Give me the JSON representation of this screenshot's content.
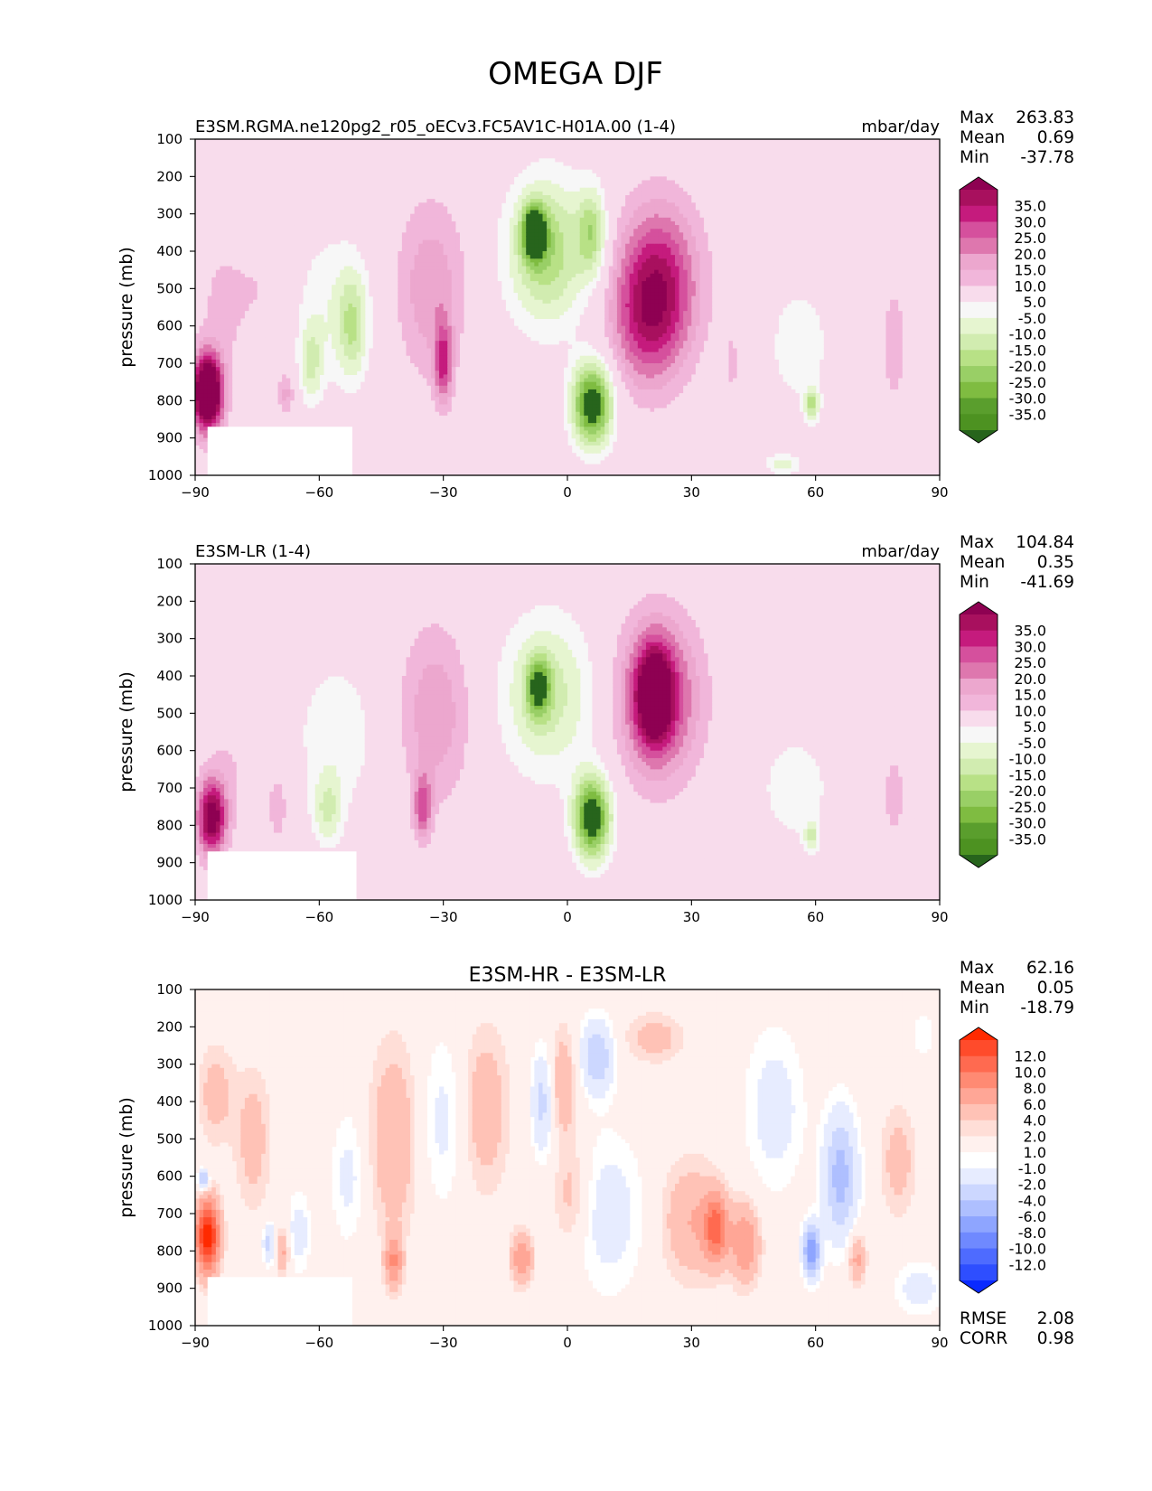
{
  "figure_title": "OMEGA DJF",
  "chart_data": [
    {
      "type": "heatmap",
      "panel": "test",
      "title_left": "E3SM.RGMA.ne120pg2_r05_oECv3.FC5AV1C-H01A.00 (1-4)",
      "title_right": "mbar/day",
      "title_center": "",
      "xlabel": "",
      "ylabel": "pressure (mb)",
      "xlim": [
        -90,
        90
      ],
      "ylim": [
        1000,
        100
      ],
      "x_ticks": [
        "−90",
        "−60",
        "−30",
        "0",
        "30",
        "60",
        "90"
      ],
      "y_ticks": [
        "100",
        "200",
        "300",
        "400",
        "500",
        "600",
        "700",
        "800",
        "900",
        "1000"
      ],
      "stats": [
        {
          "label": "Max",
          "value": "263.83"
        },
        {
          "label": "Mean",
          "value": "0.69"
        },
        {
          "label": "Min",
          "value": "-37.78"
        }
      ],
      "extra_stats": [],
      "colorbar_levels": [
        "35.0",
        "30.0",
        "25.0",
        "20.0",
        "15.0",
        "10.0",
        "5.0",
        "-5.0",
        "-10.0",
        "-15.0",
        "-20.0",
        "-25.0",
        "-30.0",
        "-35.0"
      ],
      "colorbar_colors": [
        "#8e0152",
        "#a8105e",
        "#c51b7d",
        "#d5509d",
        "#de77ae",
        "#eca7ce",
        "#f1b6da",
        "#f8dcec",
        "#f7f7f7",
        "#e6f5d0",
        "#d1ecb0",
        "#b8e186",
        "#99cf66",
        "#7fbc41",
        "#5a9e2d",
        "#4d9221",
        "#27641c"
      ],
      "features": [
        {
          "lat": -87,
          "p": 780,
          "w": 2.5,
          "h": 140,
          "v": 60
        },
        {
          "lat": -84,
          "p": 560,
          "w": 4,
          "h": 300,
          "v": 6
        },
        {
          "lat": -74,
          "p": 500,
          "w": 5,
          "h": 250,
          "v": 5
        },
        {
          "lat": -68,
          "p": 780,
          "w": 1.5,
          "h": 80,
          "v": 12
        },
        {
          "lat": -57,
          "p": 550,
          "w": 7,
          "h": 300,
          "v": -9
        },
        {
          "lat": -52,
          "p": 600,
          "w": 2.5,
          "h": 200,
          "v": -16
        },
        {
          "lat": -62,
          "p": 700,
          "w": 2,
          "h": 150,
          "v": -14
        },
        {
          "lat": -33,
          "p": 500,
          "w": 6,
          "h": 330,
          "v": 14
        },
        {
          "lat": -30,
          "p": 700,
          "w": 1.5,
          "h": 150,
          "v": 24
        },
        {
          "lat": -5,
          "p": 400,
          "w": 7,
          "h": 280,
          "v": -24
        },
        {
          "lat": -8,
          "p": 350,
          "w": 2,
          "h": 100,
          "v": -40
        },
        {
          "lat": 6,
          "p": 810,
          "w": 3.5,
          "h": 160,
          "v": -42
        },
        {
          "lat": 6,
          "p": 350,
          "w": 2.5,
          "h": 170,
          "v": -20
        },
        {
          "lat": 22,
          "p": 480,
          "w": 7,
          "h": 300,
          "v": 28
        },
        {
          "lat": 19,
          "p": 600,
          "w": 6,
          "h": 250,
          "v": 16
        },
        {
          "lat": 40,
          "p": 700,
          "w": 2,
          "h": 180,
          "v": 6
        },
        {
          "lat": 56,
          "p": 650,
          "w": 7,
          "h": 300,
          "v": -7
        },
        {
          "lat": 59,
          "p": 810,
          "w": 1.2,
          "h": 60,
          "v": -20
        },
        {
          "lat": 79,
          "p": 650,
          "w": 2.5,
          "h": 250,
          "v": 8
        },
        {
          "lat": 52,
          "p": 970,
          "w": 3,
          "h": 40,
          "v": -12
        }
      ]
    },
    {
      "type": "heatmap",
      "panel": "reference",
      "title_left": "E3SM-LR (1-4)",
      "title_right": "mbar/day",
      "title_center": "",
      "xlabel": "",
      "ylabel": "pressure (mb)",
      "xlim": [
        -90,
        90
      ],
      "ylim": [
        1000,
        100
      ],
      "x_ticks": [
        "−90",
        "−60",
        "−30",
        "0",
        "30",
        "60",
        "90"
      ],
      "y_ticks": [
        "100",
        "200",
        "300",
        "400",
        "500",
        "600",
        "700",
        "800",
        "900",
        "1000"
      ],
      "stats": [
        {
          "label": "Max",
          "value": "104.84"
        },
        {
          "label": "Mean",
          "value": "0.35"
        },
        {
          "label": "Min",
          "value": "-41.69"
        }
      ],
      "extra_stats": [],
      "colorbar_levels": [
        "35.0",
        "30.0",
        "25.0",
        "20.0",
        "15.0",
        "10.0",
        "5.0",
        "-5.0",
        "-10.0",
        "-15.0",
        "-20.0",
        "-25.0",
        "-30.0",
        "-35.0"
      ],
      "colorbar_colors": [
        "#8e0152",
        "#a8105e",
        "#c51b7d",
        "#d5509d",
        "#de77ae",
        "#eca7ce",
        "#f1b6da",
        "#f8dcec",
        "#f7f7f7",
        "#e6f5d0",
        "#d1ecb0",
        "#b8e186",
        "#99cf66",
        "#7fbc41",
        "#5a9e2d",
        "#4d9221",
        "#27641c"
      ],
      "features": [
        {
          "lat": -86,
          "p": 780,
          "w": 2.5,
          "h": 140,
          "v": 40
        },
        {
          "lat": -82,
          "p": 650,
          "w": 4,
          "h": 220,
          "v": 5
        },
        {
          "lat": -70,
          "p": 750,
          "w": 2,
          "h": 150,
          "v": 8
        },
        {
          "lat": -56,
          "p": 560,
          "w": 7,
          "h": 300,
          "v": -9
        },
        {
          "lat": -58,
          "p": 760,
          "w": 2.5,
          "h": 130,
          "v": -14
        },
        {
          "lat": -32,
          "p": 500,
          "w": 6,
          "h": 330,
          "v": 14
        },
        {
          "lat": -35,
          "p": 750,
          "w": 1.5,
          "h": 120,
          "v": 22
        },
        {
          "lat": -5,
          "p": 450,
          "w": 8,
          "h": 300,
          "v": -18
        },
        {
          "lat": -7,
          "p": 430,
          "w": 2,
          "h": 110,
          "v": -27
        },
        {
          "lat": 6,
          "p": 780,
          "w": 3.2,
          "h": 160,
          "v": -42
        },
        {
          "lat": 22,
          "p": 460,
          "w": 7,
          "h": 300,
          "v": 27
        },
        {
          "lat": 21,
          "p": 450,
          "w": 3,
          "h": 180,
          "v": 34
        },
        {
          "lat": 55,
          "p": 700,
          "w": 8,
          "h": 270,
          "v": -7
        },
        {
          "lat": 59,
          "p": 830,
          "w": 1.2,
          "h": 60,
          "v": -14
        },
        {
          "lat": 79,
          "p": 720,
          "w": 2.5,
          "h": 200,
          "v": 7
        }
      ]
    },
    {
      "type": "heatmap",
      "panel": "difference",
      "title_left": "",
      "title_right": "",
      "title_center": "E3SM-HR - E3SM-LR",
      "xlabel": "",
      "ylabel": "pressure (mb)",
      "xlim": [
        -90,
        90
      ],
      "ylim": [
        1000,
        100
      ],
      "x_ticks": [
        "−90",
        "−60",
        "−30",
        "0",
        "30",
        "60",
        "90"
      ],
      "y_ticks": [
        "100",
        "200",
        "300",
        "400",
        "500",
        "600",
        "700",
        "800",
        "900",
        "1000"
      ],
      "stats": [
        {
          "label": "Max",
          "value": "62.16"
        },
        {
          "label": "Mean",
          "value": "0.05"
        },
        {
          "label": "Min",
          "value": "-18.79"
        }
      ],
      "extra_stats": [
        {
          "label": "RMSE",
          "value": "2.08"
        },
        {
          "label": "CORR",
          "value": "0.98"
        }
      ],
      "colorbar_levels": [
        "12.0",
        "10.0",
        "8.0",
        "6.0",
        "4.0",
        "2.0",
        "1.0",
        "-1.0",
        "-2.0",
        "-4.0",
        "-6.0",
        "-8.0",
        "-10.0",
        "-12.0"
      ],
      "colorbar_colors": [
        "#ff2a00",
        "#ff4b2b",
        "#ff6a50",
        "#ff8a73",
        "#ffa696",
        "#ffc2b6",
        "#ffded7",
        "#fff1ee",
        "#ffffff",
        "#e7ecff",
        "#ccd7ff",
        "#aebfff",
        "#8ea5ff",
        "#6f89ff",
        "#4e6bff",
        "#2e4eff",
        "#0a2aff"
      ],
      "features": [
        {
          "lat": -87,
          "p": 760,
          "w": 2,
          "h": 140,
          "v": 14
        },
        {
          "lat": -88,
          "p": 610,
          "w": 1,
          "h": 40,
          "v": -8
        },
        {
          "lat": -85,
          "p": 380,
          "w": 3,
          "h": 180,
          "v": 3
        },
        {
          "lat": -76,
          "p": 500,
          "w": 3,
          "h": 260,
          "v": 3
        },
        {
          "lat": -72,
          "p": 780,
          "w": 1.2,
          "h": 80,
          "v": -5
        },
        {
          "lat": -69,
          "p": 800,
          "w": 1.2,
          "h": 80,
          "v": 5
        },
        {
          "lat": -65,
          "p": 750,
          "w": 2,
          "h": 150,
          "v": -3
        },
        {
          "lat": -53,
          "p": 600,
          "w": 3,
          "h": 250,
          "v": -2.5
        },
        {
          "lat": -42,
          "p": 500,
          "w": 4,
          "h": 350,
          "v": 4
        },
        {
          "lat": -42,
          "p": 830,
          "w": 1.5,
          "h": 100,
          "v": 6
        },
        {
          "lat": -30,
          "p": 450,
          "w": 4,
          "h": 320,
          "v": -2.5
        },
        {
          "lat": -20,
          "p": 420,
          "w": 4,
          "h": 300,
          "v": 3.5
        },
        {
          "lat": -11,
          "p": 820,
          "w": 1.8,
          "h": 100,
          "v": 6
        },
        {
          "lat": -6,
          "p": 400,
          "w": 2,
          "h": 200,
          "v": -5
        },
        {
          "lat": -1,
          "p": 350,
          "w": 2.5,
          "h": 200,
          "v": 4
        },
        {
          "lat": 1,
          "p": 650,
          "w": 3,
          "h": 200,
          "v": 3
        },
        {
          "lat": 7,
          "p": 280,
          "w": 3,
          "h": 140,
          "v": -6
        },
        {
          "lat": 10,
          "p": 700,
          "w": 6,
          "h": 300,
          "v": -3
        },
        {
          "lat": 21,
          "p": 230,
          "w": 5,
          "h": 90,
          "v": 3
        },
        {
          "lat": 30,
          "p": 720,
          "w": 5,
          "h": 220,
          "v": 4
        },
        {
          "lat": 36,
          "p": 740,
          "w": 2,
          "h": 130,
          "v": 8
        },
        {
          "lat": 43,
          "p": 780,
          "w": 2.5,
          "h": 150,
          "v": 6
        },
        {
          "lat": 50,
          "p": 420,
          "w": 5,
          "h": 300,
          "v": -3
        },
        {
          "lat": 59,
          "p": 800,
          "w": 1.5,
          "h": 100,
          "v": -10
        },
        {
          "lat": 66,
          "p": 600,
          "w": 3,
          "h": 250,
          "v": -7
        },
        {
          "lat": 70,
          "p": 820,
          "w": 1.5,
          "h": 100,
          "v": 5
        },
        {
          "lat": 80,
          "p": 560,
          "w": 3,
          "h": 200,
          "v": 3
        },
        {
          "lat": 86,
          "p": 220,
          "w": 2,
          "h": 90,
          "v": -2
        },
        {
          "lat": 85,
          "p": 900,
          "w": 4,
          "h": 100,
          "v": -3
        }
      ]
    }
  ]
}
